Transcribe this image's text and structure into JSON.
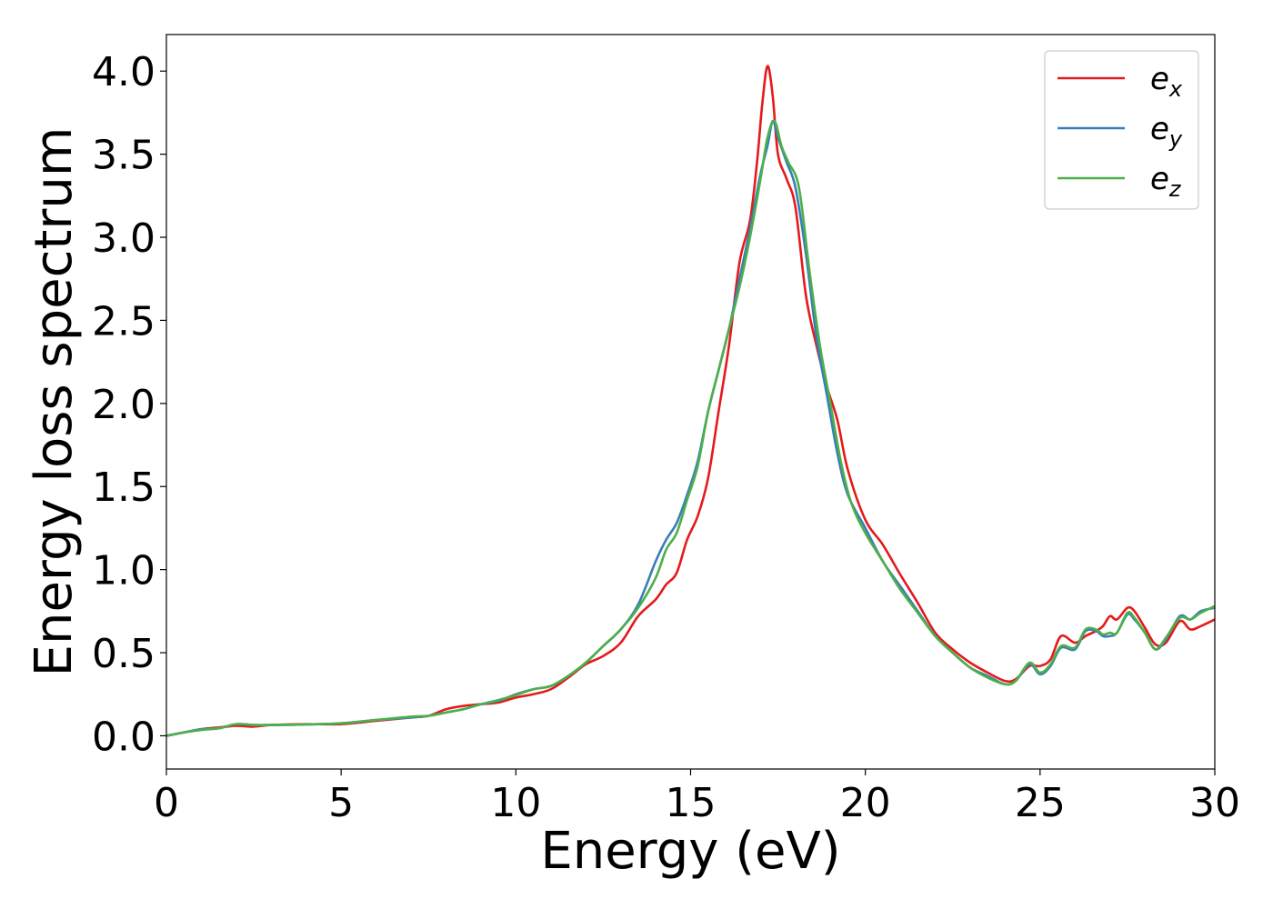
{
  "chart_data": {
    "type": "line",
    "xlabel": "Energy (eV)",
    "ylabel": "Energy loss spectrum",
    "xlim": [
      0,
      30
    ],
    "ylim": [
      -0.2,
      4.22
    ],
    "xticks": [
      0,
      5,
      10,
      15,
      20,
      25,
      30
    ],
    "xtick_labels": [
      "0",
      "5",
      "10",
      "15",
      "20",
      "25",
      "30"
    ],
    "yticks": [
      0.0,
      0.5,
      1.0,
      1.5,
      2.0,
      2.5,
      3.0,
      3.5,
      4.0
    ],
    "ytick_labels": [
      "0.0",
      "0.5",
      "1.0",
      "1.5",
      "2.0",
      "2.5",
      "3.0",
      "3.5",
      "4.0"
    ],
    "grid": false,
    "legend_position": "top-right",
    "series": [
      {
        "name": "e_x",
        "legend_base": "e",
        "legend_sub": "x",
        "color": "#e41a1c",
        "points": [
          [
            0,
            0.0
          ],
          [
            0.5,
            0.02
          ],
          [
            1,
            0.04
          ],
          [
            1.5,
            0.05
          ],
          [
            2,
            0.06
          ],
          [
            2.5,
            0.055
          ],
          [
            3,
            0.065
          ],
          [
            4,
            0.07
          ],
          [
            5,
            0.07
          ],
          [
            6,
            0.09
          ],
          [
            7,
            0.11
          ],
          [
            7.5,
            0.12
          ],
          [
            8,
            0.16
          ],
          [
            8.5,
            0.18
          ],
          [
            9,
            0.19
          ],
          [
            9.5,
            0.2
          ],
          [
            10,
            0.23
          ],
          [
            10.5,
            0.25
          ],
          [
            11,
            0.28
          ],
          [
            11.5,
            0.35
          ],
          [
            12,
            0.43
          ],
          [
            12.5,
            0.48
          ],
          [
            13,
            0.56
          ],
          [
            13.5,
            0.72
          ],
          [
            14,
            0.82
          ],
          [
            14.3,
            0.91
          ],
          [
            14.6,
            0.98
          ],
          [
            14.9,
            1.18
          ],
          [
            15.2,
            1.32
          ],
          [
            15.5,
            1.55
          ],
          [
            15.8,
            1.95
          ],
          [
            16.1,
            2.35
          ],
          [
            16.4,
            2.85
          ],
          [
            16.7,
            3.1
          ],
          [
            16.9,
            3.45
          ],
          [
            17.05,
            3.8
          ],
          [
            17.2,
            4.03
          ],
          [
            17.35,
            3.85
          ],
          [
            17.5,
            3.5
          ],
          [
            17.75,
            3.35
          ],
          [
            18,
            3.18
          ],
          [
            18.3,
            2.65
          ],
          [
            18.6,
            2.35
          ],
          [
            18.9,
            2.1
          ],
          [
            19.2,
            1.9
          ],
          [
            19.5,
            1.6
          ],
          [
            20,
            1.3
          ],
          [
            20.5,
            1.15
          ],
          [
            21,
            0.97
          ],
          [
            21.5,
            0.8
          ],
          [
            22,
            0.62
          ],
          [
            22.5,
            0.52
          ],
          [
            23,
            0.44
          ],
          [
            23.5,
            0.38
          ],
          [
            24,
            0.33
          ],
          [
            24.3,
            0.34
          ],
          [
            24.7,
            0.42
          ],
          [
            25,
            0.42
          ],
          [
            25.3,
            0.46
          ],
          [
            25.6,
            0.6
          ],
          [
            26,
            0.56
          ],
          [
            26.3,
            0.6
          ],
          [
            26.6,
            0.63
          ],
          [
            26.8,
            0.66
          ],
          [
            27,
            0.72
          ],
          [
            27.2,
            0.7
          ],
          [
            27.5,
            0.77
          ],
          [
            27.7,
            0.75
          ],
          [
            28,
            0.65
          ],
          [
            28.3,
            0.55
          ],
          [
            28.6,
            0.56
          ],
          [
            29,
            0.69
          ],
          [
            29.3,
            0.64
          ],
          [
            29.6,
            0.66
          ],
          [
            30,
            0.7
          ]
        ]
      },
      {
        "name": "e_y",
        "legend_base": "e",
        "legend_sub": "y",
        "color": "#377eb8",
        "points": [
          [
            0,
            0.0
          ],
          [
            0.5,
            0.02
          ],
          [
            1,
            0.04
          ],
          [
            1.5,
            0.045
          ],
          [
            2,
            0.07
          ],
          [
            2.5,
            0.065
          ],
          [
            3,
            0.065
          ],
          [
            4,
            0.068
          ],
          [
            5,
            0.075
          ],
          [
            6,
            0.095
          ],
          [
            7,
            0.11
          ],
          [
            7.5,
            0.12
          ],
          [
            8,
            0.14
          ],
          [
            8.5,
            0.16
          ],
          [
            9,
            0.19
          ],
          [
            9.5,
            0.21
          ],
          [
            10,
            0.25
          ],
          [
            10.5,
            0.28
          ],
          [
            11,
            0.3
          ],
          [
            11.5,
            0.36
          ],
          [
            12,
            0.44
          ],
          [
            12.5,
            0.54
          ],
          [
            13,
            0.64
          ],
          [
            13.5,
            0.79
          ],
          [
            14,
            1.05
          ],
          [
            14.3,
            1.18
          ],
          [
            14.6,
            1.28
          ],
          [
            14.9,
            1.45
          ],
          [
            15.2,
            1.65
          ],
          [
            15.5,
            1.95
          ],
          [
            15.8,
            2.2
          ],
          [
            16.1,
            2.45
          ],
          [
            16.4,
            2.75
          ],
          [
            16.7,
            3.05
          ],
          [
            17,
            3.38
          ],
          [
            17.2,
            3.55
          ],
          [
            17.35,
            3.7
          ],
          [
            17.5,
            3.6
          ],
          [
            17.75,
            3.45
          ],
          [
            18,
            3.3
          ],
          [
            18.3,
            2.9
          ],
          [
            18.6,
            2.4
          ],
          [
            18.9,
            2.05
          ],
          [
            19.2,
            1.7
          ],
          [
            19.5,
            1.45
          ],
          [
            20,
            1.25
          ],
          [
            20.5,
            1.05
          ],
          [
            21,
            0.9
          ],
          [
            21.5,
            0.75
          ],
          [
            22,
            0.6
          ],
          [
            22.5,
            0.5
          ],
          [
            23,
            0.41
          ],
          [
            23.5,
            0.36
          ],
          [
            24,
            0.31
          ],
          [
            24.3,
            0.33
          ],
          [
            24.7,
            0.43
          ],
          [
            25,
            0.37
          ],
          [
            25.3,
            0.42
          ],
          [
            25.6,
            0.53
          ],
          [
            26,
            0.52
          ],
          [
            26.3,
            0.63
          ],
          [
            26.6,
            0.63
          ],
          [
            26.8,
            0.6
          ],
          [
            27,
            0.6
          ],
          [
            27.2,
            0.62
          ],
          [
            27.5,
            0.73
          ],
          [
            27.7,
            0.7
          ],
          [
            28,
            0.62
          ],
          [
            28.3,
            0.52
          ],
          [
            28.6,
            0.58
          ],
          [
            29,
            0.72
          ],
          [
            29.3,
            0.7
          ],
          [
            29.6,
            0.75
          ],
          [
            30,
            0.77
          ]
        ]
      },
      {
        "name": "e_z",
        "legend_base": "e",
        "legend_sub": "z",
        "color": "#4daf4a",
        "points": [
          [
            0,
            0.0
          ],
          [
            0.5,
            0.02
          ],
          [
            1,
            0.035
          ],
          [
            1.5,
            0.045
          ],
          [
            2,
            0.07
          ],
          [
            2.5,
            0.065
          ],
          [
            3,
            0.065
          ],
          [
            4,
            0.068
          ],
          [
            5,
            0.075
          ],
          [
            6,
            0.095
          ],
          [
            7,
            0.115
          ],
          [
            7.5,
            0.12
          ],
          [
            8,
            0.14
          ],
          [
            8.5,
            0.16
          ],
          [
            9,
            0.19
          ],
          [
            9.5,
            0.215
          ],
          [
            10,
            0.245
          ],
          [
            10.5,
            0.28
          ],
          [
            11,
            0.3
          ],
          [
            11.5,
            0.36
          ],
          [
            12,
            0.44
          ],
          [
            12.5,
            0.54
          ],
          [
            13,
            0.64
          ],
          [
            13.5,
            0.77
          ],
          [
            14,
            0.95
          ],
          [
            14.3,
            1.12
          ],
          [
            14.6,
            1.22
          ],
          [
            14.9,
            1.42
          ],
          [
            15.2,
            1.62
          ],
          [
            15.5,
            1.95
          ],
          [
            15.8,
            2.2
          ],
          [
            16.1,
            2.45
          ],
          [
            16.4,
            2.7
          ],
          [
            16.7,
            3.0
          ],
          [
            17,
            3.35
          ],
          [
            17.2,
            3.6
          ],
          [
            17.4,
            3.7
          ],
          [
            17.6,
            3.55
          ],
          [
            17.8,
            3.45
          ],
          [
            18.1,
            3.3
          ],
          [
            18.4,
            2.8
          ],
          [
            18.7,
            2.35
          ],
          [
            19,
            2.0
          ],
          [
            19.3,
            1.65
          ],
          [
            19.6,
            1.4
          ],
          [
            20,
            1.22
          ],
          [
            20.5,
            1.05
          ],
          [
            21,
            0.88
          ],
          [
            21.5,
            0.74
          ],
          [
            22,
            0.6
          ],
          [
            22.5,
            0.5
          ],
          [
            23,
            0.41
          ],
          [
            23.5,
            0.35
          ],
          [
            24,
            0.31
          ],
          [
            24.3,
            0.33
          ],
          [
            24.7,
            0.44
          ],
          [
            25,
            0.38
          ],
          [
            25.3,
            0.43
          ],
          [
            25.6,
            0.54
          ],
          [
            26,
            0.53
          ],
          [
            26.3,
            0.64
          ],
          [
            26.6,
            0.64
          ],
          [
            26.8,
            0.61
          ],
          [
            27,
            0.62
          ],
          [
            27.2,
            0.62
          ],
          [
            27.5,
            0.74
          ],
          [
            27.7,
            0.71
          ],
          [
            28,
            0.62
          ],
          [
            28.3,
            0.52
          ],
          [
            28.6,
            0.59
          ],
          [
            29,
            0.71
          ],
          [
            29.3,
            0.7
          ],
          [
            29.6,
            0.74
          ],
          [
            30,
            0.78
          ]
        ]
      }
    ]
  }
}
